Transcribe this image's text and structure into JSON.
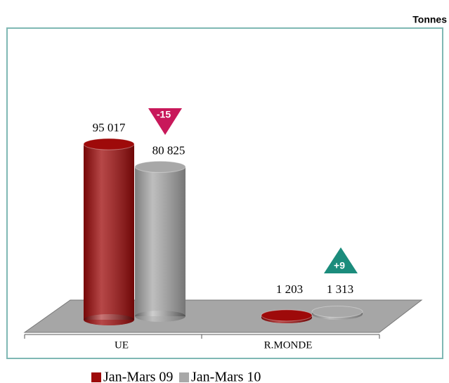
{
  "chart_data": {
    "type": "bar3d",
    "unit_label": "Tonnes",
    "categories": [
      "UE",
      "R.MONDE"
    ],
    "series": [
      {
        "name": "Jan-Mars 09",
        "color": "#9e0a0a",
        "values": [
          95017,
          1203
        ],
        "value_labels": [
          "95 017",
          "1 203"
        ]
      },
      {
        "name": "Jan-Mars 10",
        "color": "#a8a8a8",
        "values": [
          80825,
          1313
        ],
        "value_labels": [
          "80 825",
          "1 313"
        ]
      }
    ],
    "annotations": [
      {
        "text": "-15",
        "color": "#c8185a"
      },
      {
        "text": "+9",
        "color": "#1b8c7c"
      }
    ],
    "ylim": [
      0,
      100000
    ]
  }
}
